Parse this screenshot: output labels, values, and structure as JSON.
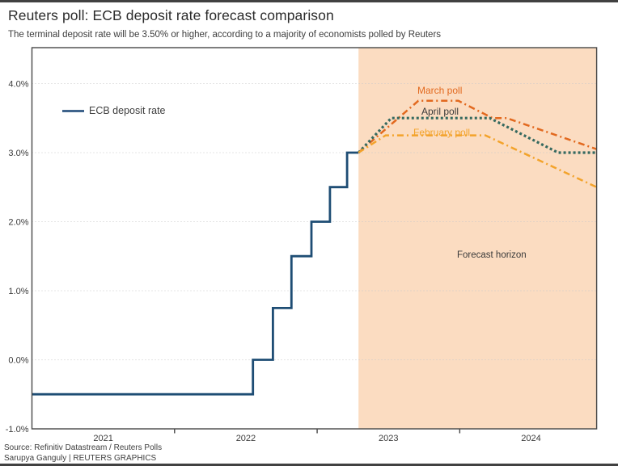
{
  "header": {
    "title": "Reuters poll: ECB deposit rate forecast comparison",
    "subtitle": "The terminal deposit rate will be 3.50% or higher, according to a majority of economists polled by Reuters"
  },
  "legend": {
    "ecb_label": "ECB deposit rate"
  },
  "footer": {
    "source": "Source: Refinitiv Datastream / Reuters Polls",
    "credit": "Sarupya Ganguly | REUTERS GRAPHICS"
  },
  "colors": {
    "ecb_line": "#1e4d74",
    "legend_swatch": "#3f648c",
    "march": "#e2691f",
    "april": "#35695f",
    "february": "#f3a32b",
    "forecast_bg": "#fbdcc1",
    "grid": "#c9c9c9",
    "frame": "#474747",
    "text_dark": "#3a3a3a"
  },
  "chart_data": {
    "type": "line",
    "title": "Reuters poll: ECB deposit rate forecast comparison",
    "subtitle": "The terminal deposit rate will be 3.50% or higher, according to a majority of economists polled by Reuters",
    "x_axis": {
      "range": [
        2021.0,
        2024.96
      ],
      "tick_marks": [
        2022,
        2023,
        2024
      ],
      "labels": [
        "2021",
        "2022",
        "2023",
        "2024"
      ],
      "label_centers": [
        2021.5,
        2022.5,
        2023.5,
        2024.5
      ]
    },
    "y_axis": {
      "range": [
        -1.0,
        4.52
      ],
      "ticks": [
        4.0,
        3.0,
        2.0,
        1.0,
        0.0,
        -1.0
      ],
      "labels": [
        "4.0%",
        "3.0%",
        "2.0%",
        "1.0%",
        "0.0%",
        "-1.0%"
      ],
      "gridlines": [
        4.0,
        3.0,
        2.0,
        1.0,
        0.0
      ]
    },
    "forecast_region": {
      "start": 2023.29,
      "end": 2024.96,
      "label": "Forecast horizon"
    },
    "series": [
      {
        "name": "ECB deposit rate",
        "style": "solid",
        "color_key": "ecb_line",
        "points": [
          [
            2021.0,
            -0.5
          ],
          [
            2022.55,
            -0.5
          ],
          [
            2022.55,
            0.0
          ],
          [
            2022.69,
            0.0
          ],
          [
            2022.69,
            0.75
          ],
          [
            2022.82,
            0.75
          ],
          [
            2022.82,
            1.5
          ],
          [
            2022.96,
            1.5
          ],
          [
            2022.96,
            2.0
          ],
          [
            2023.09,
            2.0
          ],
          [
            2023.09,
            2.5
          ],
          [
            2023.21,
            2.5
          ],
          [
            2023.21,
            3.0
          ],
          [
            2023.29,
            3.0
          ]
        ]
      },
      {
        "name": "March poll",
        "style": "dashdot",
        "color_key": "march",
        "points": [
          [
            2023.29,
            3.0
          ],
          [
            2023.71,
            3.75
          ],
          [
            2023.99,
            3.75
          ],
          [
            2024.23,
            3.5
          ],
          [
            2024.33,
            3.5
          ],
          [
            2024.96,
            3.05
          ]
        ]
      },
      {
        "name": "April poll",
        "style": "dotted",
        "color_key": "april",
        "points": [
          [
            2023.29,
            3.0
          ],
          [
            2023.52,
            3.5
          ],
          [
            2024.21,
            3.5
          ],
          [
            2024.69,
            3.0
          ],
          [
            2024.96,
            3.0
          ]
        ]
      },
      {
        "name": "February poll",
        "style": "dashdot",
        "color_key": "february",
        "points": [
          [
            2023.29,
            3.0
          ],
          [
            2023.48,
            3.25
          ],
          [
            2024.18,
            3.25
          ],
          [
            2024.96,
            2.5
          ]
        ]
      }
    ],
    "annotations": [
      {
        "text": "March poll"
      },
      {
        "text": "April poll"
      },
      {
        "text": "February poll"
      },
      {
        "text": "Forecast horizon"
      }
    ],
    "legend_entry": "ECB deposit rate",
    "grid": true,
    "legend_position": "upper-left-inside"
  }
}
